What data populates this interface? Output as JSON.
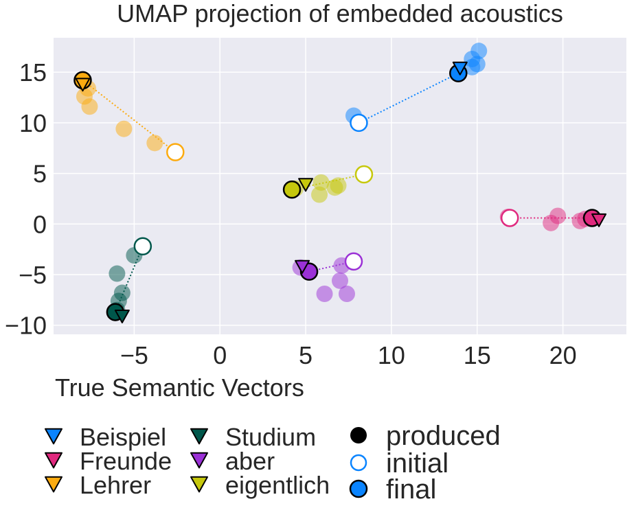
{
  "chart_data": {
    "type": "scatter",
    "title": "UMAP projection of embedded acoustics",
    "xlabel": "True Semantic Vectors",
    "ylabel": "",
    "xlim": [
      -9.7,
      23.7
    ],
    "ylim": [
      -10.9,
      18.4
    ],
    "xticks": [
      -5,
      0,
      5,
      10,
      15,
      20
    ],
    "yticks": [
      -10,
      -5,
      0,
      5,
      10,
      15
    ],
    "xtick_labels": [
      "−5",
      "0",
      "5",
      "10",
      "15",
      "20"
    ],
    "ytick_labels": [
      "−10",
      "−5",
      "0",
      "5",
      "10",
      "15"
    ],
    "grid": true,
    "background": "#eaeaf2",
    "legend_position": "below-left",
    "series": [
      {
        "name": "Beispiel",
        "color": "#0a84ff",
        "target": [
          14.0,
          15.4
        ],
        "produced": [
          [
            14.7,
            15.5
          ],
          [
            15.0,
            15.8
          ],
          [
            14.7,
            16.3
          ],
          [
            15.1,
            17.1
          ],
          [
            7.8,
            10.7
          ]
        ],
        "initial": [
          8.1,
          10.0
        ],
        "final": [
          13.9,
          14.9
        ]
      },
      {
        "name": "Freunde",
        "color": "#e0297e",
        "target": [
          22.1,
          0.4
        ],
        "produced": [
          [
            19.3,
            0.1
          ],
          [
            19.7,
            0.8
          ],
          [
            21.0,
            0.3
          ],
          [
            21.3,
            0.5
          ],
          [
            16.8,
            0.7
          ]
        ],
        "initial": [
          16.9,
          0.6
        ],
        "final": [
          21.7,
          0.6
        ]
      },
      {
        "name": "Lehrer",
        "color": "#fcab10",
        "target": [
          -8.0,
          13.8
        ],
        "produced": [
          [
            -7.7,
            13.4
          ],
          [
            -7.9,
            12.6
          ],
          [
            -7.6,
            11.6
          ],
          [
            -5.6,
            9.4
          ],
          [
            -3.8,
            8.0
          ]
        ],
        "initial": [
          -2.6,
          7.1
        ],
        "final": [
          -8.0,
          14.2
        ]
      },
      {
        "name": "Studium",
        "color": "#00574b",
        "target": [
          -5.7,
          -9.1
        ],
        "produced": [
          [
            -5.9,
            -7.6
          ],
          [
            -5.7,
            -6.8
          ],
          [
            -6.0,
            -4.9
          ],
          [
            -5.0,
            -3.1
          ],
          [
            -6.0,
            -8.5
          ]
        ],
        "initial": [
          -4.5,
          -2.2
        ],
        "final": [
          -6.1,
          -8.7
        ]
      },
      {
        "name": "aber",
        "color": "#9b31d6",
        "target": [
          4.8,
          -4.2
        ],
        "produced": [
          [
            6.1,
            -6.9
          ],
          [
            7.4,
            -6.9
          ],
          [
            7.0,
            -5.6
          ],
          [
            7.1,
            -4.1
          ],
          [
            4.7,
            -4.3
          ]
        ],
        "initial": [
          7.8,
          -3.7
        ],
        "final": [
          5.2,
          -4.7
        ]
      },
      {
        "name": "eigentlich",
        "color": "#c6c80c",
        "target": [
          5.0,
          3.9
        ],
        "produced": [
          [
            5.8,
            2.9
          ],
          [
            6.7,
            3.6
          ],
          [
            6.9,
            3.8
          ],
          [
            5.9,
            4.1
          ],
          [
            4.4,
            3.5
          ]
        ],
        "initial": [
          8.4,
          4.9
        ],
        "final": [
          4.2,
          3.4
        ]
      }
    ],
    "marker_legend": [
      "produced",
      "initial",
      "final"
    ]
  }
}
